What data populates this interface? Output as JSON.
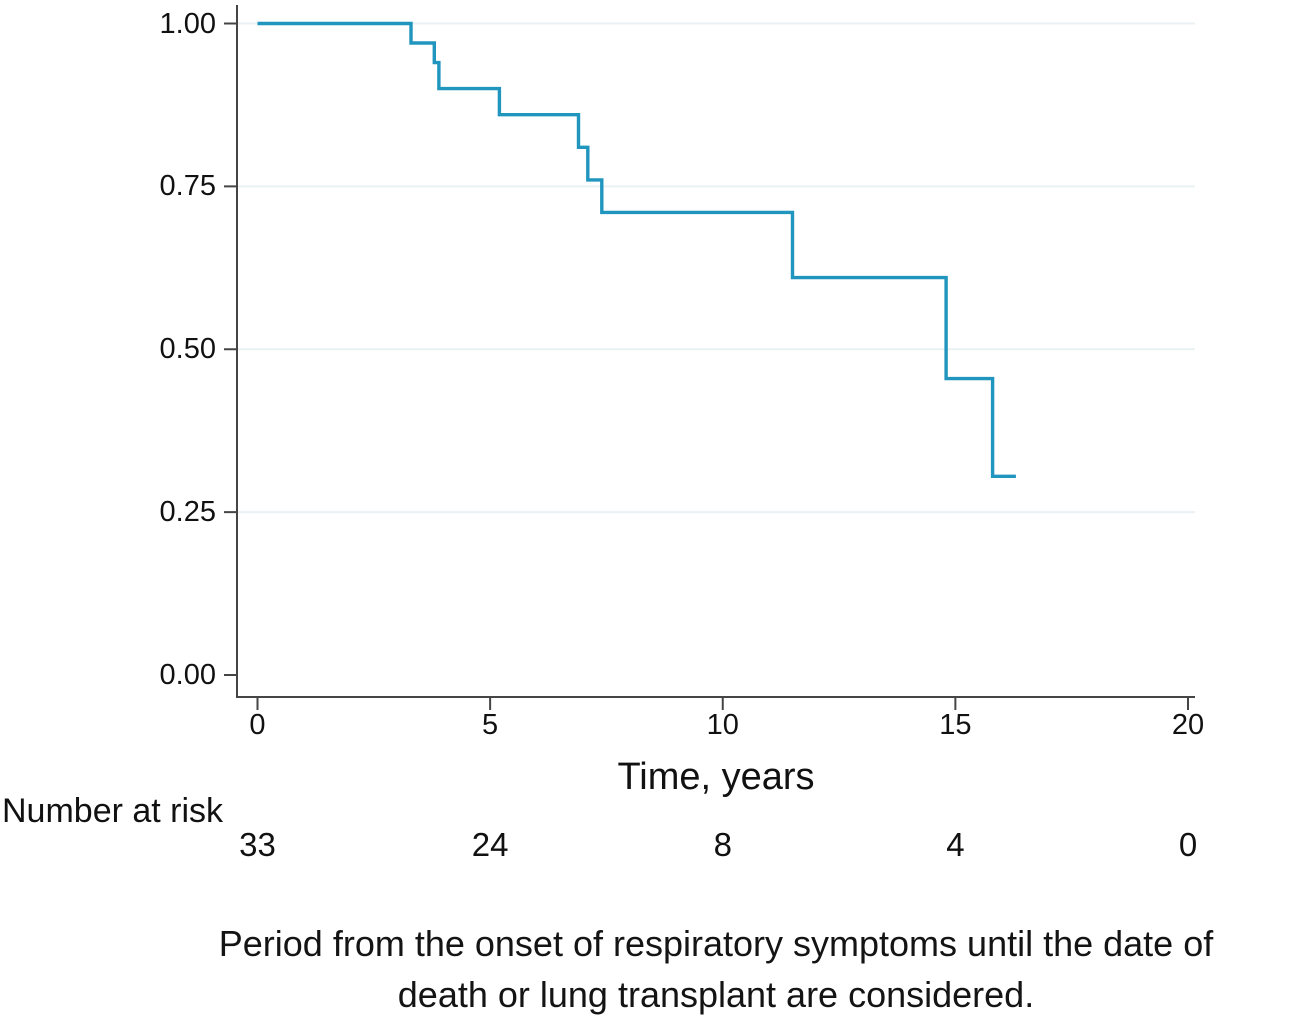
{
  "colors": {
    "curve": "#2095bd",
    "grid": "#e9f1f4",
    "axis": "#454545",
    "text": "#111111"
  },
  "chart_data": {
    "type": "line",
    "subtype": "kaplan-meier-step",
    "title": "",
    "xlabel": "Time, years",
    "ylabel": "",
    "xlim": [
      0,
      20
    ],
    "ylim": [
      0.0,
      1.0
    ],
    "xtick_values": [
      0,
      5,
      10,
      15,
      20
    ],
    "xtick_labels": [
      "0",
      "5",
      "10",
      "15",
      "20"
    ],
    "ytick_values": [
      0.0,
      0.25,
      0.5,
      0.75,
      1.0
    ],
    "ytick_labels": [
      "0.00",
      "0.25",
      "0.50",
      "0.75",
      "1.00"
    ],
    "grid": "horizontal-at-0.25-0.50-0.75-1.00",
    "legend": "none",
    "series": [
      {
        "name": "survival-probability",
        "color": "#2095bd",
        "step_points": [
          [
            0.0,
            1.0
          ],
          [
            3.3,
            1.0
          ],
          [
            3.3,
            0.97
          ],
          [
            3.8,
            0.97
          ],
          [
            3.8,
            0.94
          ],
          [
            3.9,
            0.94
          ],
          [
            3.9,
            0.9
          ],
          [
            5.2,
            0.9
          ],
          [
            5.2,
            0.86
          ],
          [
            6.9,
            0.86
          ],
          [
            6.9,
            0.81
          ],
          [
            7.1,
            0.81
          ],
          [
            7.1,
            0.76
          ],
          [
            7.4,
            0.76
          ],
          [
            7.4,
            0.71
          ],
          [
            11.5,
            0.71
          ],
          [
            11.5,
            0.61
          ],
          [
            14.8,
            0.61
          ],
          [
            14.8,
            0.455
          ],
          [
            15.8,
            0.455
          ],
          [
            15.8,
            0.305
          ],
          [
            16.3,
            0.305
          ]
        ]
      }
    ]
  },
  "risk_table": {
    "label": "Number at risk",
    "times": [
      0,
      5,
      10,
      15,
      20
    ],
    "counts": [
      "33",
      "24",
      "8",
      "4",
      "0"
    ]
  },
  "caption": {
    "line1": "Period from the onset of respiratory symptoms until the date of",
    "line2": "death or lung transplant are considered."
  }
}
